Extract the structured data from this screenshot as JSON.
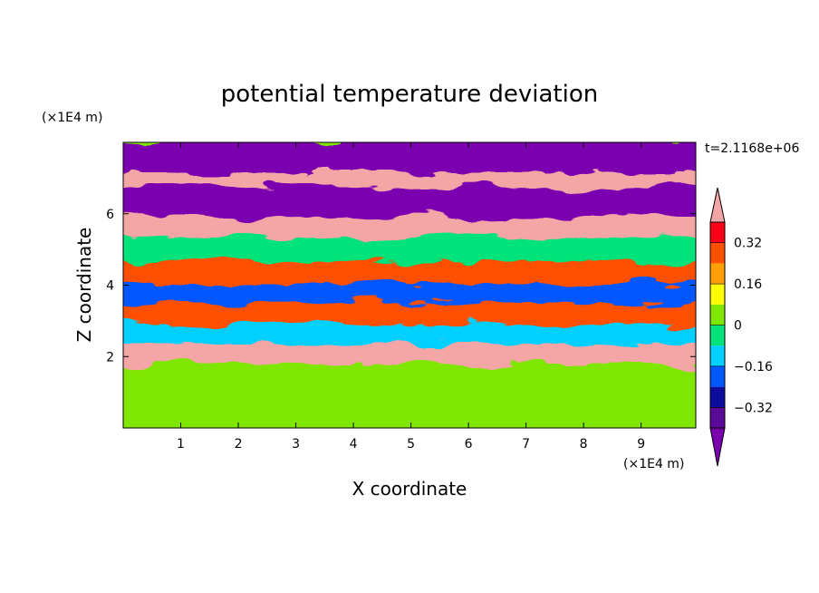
{
  "chart_data": {
    "type": "heatmap",
    "title": "potential temperature deviation",
    "xlabel": "X coordinate",
    "ylabel": "Z coordinate",
    "x_unit": "(×1E4 m)",
    "y_unit": "(×1E4 m)",
    "time_label": "t=2.1168e+06",
    "xlim": [
      0,
      9.95
    ],
    "ylim": [
      0,
      8.0
    ],
    "x_ticks": [
      1,
      2,
      3,
      4,
      5,
      6,
      7,
      8,
      9
    ],
    "y_ticks": [
      2,
      4,
      6
    ],
    "x_tick_labels": [
      "1",
      "2",
      "3",
      "4",
      "5",
      "6",
      "7",
      "8",
      "9"
    ],
    "y_tick_labels": [
      "2",
      "4",
      "6"
    ],
    "colorbar": {
      "levels": [
        -0.4,
        -0.32,
        -0.24,
        -0.16,
        -0.08,
        0,
        0.08,
        0.16,
        0.24,
        0.32,
        0.4
      ],
      "tick_labels": [
        "0.32",
        "0.16",
        "0",
        "−0.16",
        "−0.32"
      ],
      "tick_values": [
        0.32,
        0.16,
        0,
        -0.16,
        -0.32
      ],
      "colors": [
        "#7a00b0",
        "#5a0a96",
        "#0c0c9c",
        "#0057ff",
        "#00d0ff",
        "#00e27a",
        "#7fe600",
        "#ffff00",
        "#ffa000",
        "#ff5000",
        "#ff0018",
        "#f4a6a6"
      ],
      "extend": "both"
    },
    "bands": [
      {
        "z_top": 8.0,
        "z_bottom": 7.15,
        "value": -0.45
      },
      {
        "z_top": 7.15,
        "z_bottom": 6.7,
        "value": 0.45
      },
      {
        "z_top": 6.7,
        "z_bottom": 5.85,
        "value": -0.45
      },
      {
        "z_top": 5.85,
        "z_bottom": 5.3,
        "value": 0.45
      },
      {
        "z_top": 5.3,
        "z_bottom": 4.6,
        "value": -0.02
      },
      {
        "z_top": 4.6,
        "z_bottom": 4.0,
        "value": 0.25
      },
      {
        "z_top": 4.0,
        "z_bottom": 3.45,
        "value": -0.2
      },
      {
        "z_top": 3.45,
        "z_bottom": 2.85,
        "value": 0.3
      },
      {
        "z_top": 2.85,
        "z_bottom": 2.3,
        "value": -0.1
      },
      {
        "z_top": 2.3,
        "z_bottom": 1.75,
        "value": 0.45
      },
      {
        "z_top": 1.75,
        "z_bottom": 0.0,
        "value": 0.05
      }
    ]
  }
}
